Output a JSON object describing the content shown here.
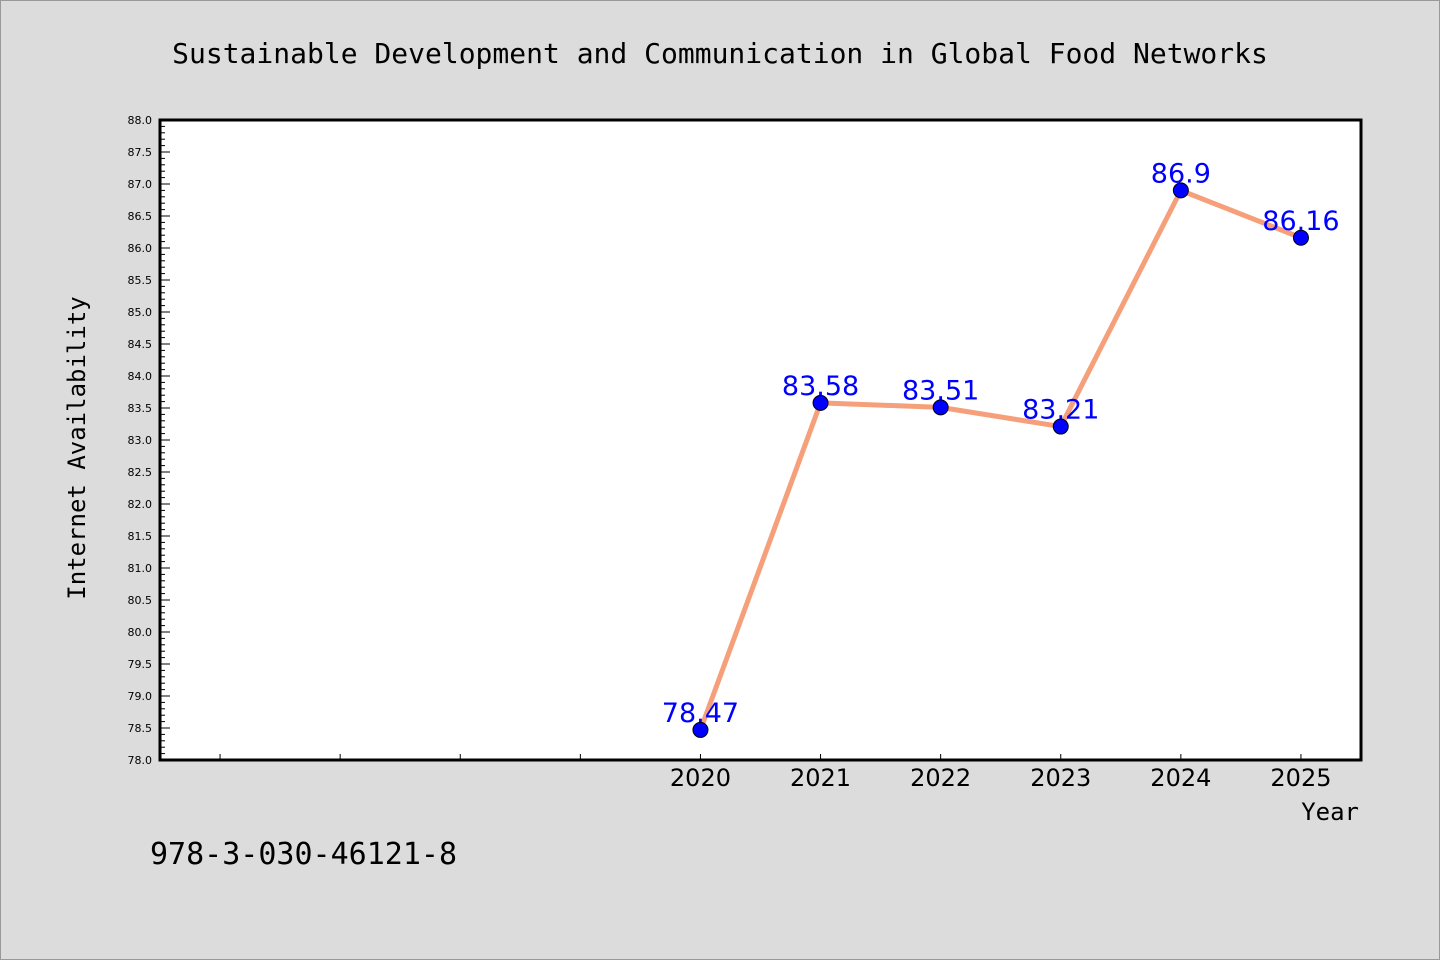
{
  "chart_data": {
    "type": "line",
    "title": "Sustainable Development and Communication in Global Food Networks",
    "xlabel": "Year",
    "ylabel": "Internet Availability",
    "footnote": "978-3-030-46121-8",
    "x": [
      2020,
      2021,
      2022,
      2023,
      2024,
      2025
    ],
    "x_tick_labels": [
      "2020",
      "2021",
      "2022",
      "2023",
      "2024",
      "2025"
    ],
    "xlim": [
      2015.5,
      2025.5
    ],
    "ylim": [
      78.0,
      88.0
    ],
    "y_ticks": [
      "78.0",
      "78.5",
      "79.0",
      "79.5",
      "80.0",
      "80.5",
      "81.0",
      "81.5",
      "82.0",
      "82.5",
      "83.0",
      "83.5",
      "84.0",
      "84.5",
      "85.0",
      "85.5",
      "86.0",
      "86.5",
      "87.0",
      "87.5",
      "88.0"
    ],
    "grid": false,
    "series": [
      {
        "values": [
          78.47,
          83.58,
          83.51,
          83.21,
          86.9,
          86.16
        ],
        "labels": [
          "78.47",
          "83.58",
          "83.51",
          "83.21",
          "86.9",
          "86.16"
        ],
        "line_color": "#f5a07a",
        "marker_color": "#0000ff",
        "label_color": "#0000ff"
      }
    ]
  }
}
